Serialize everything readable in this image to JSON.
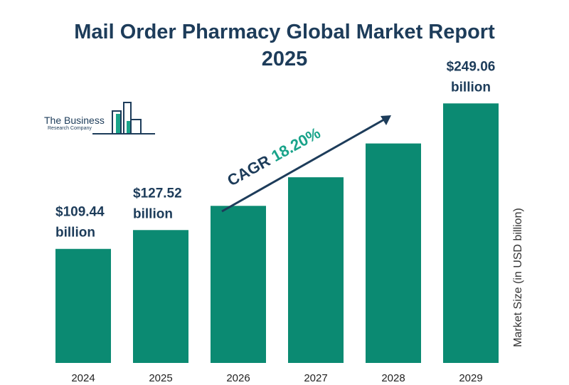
{
  "title_line1": "Mail Order Pharmacy Global Market Report",
  "title_line2": "2025",
  "logo": {
    "line1": "The Business",
    "line2": "Research Company"
  },
  "colors": {
    "bar": "#0b8a72",
    "title": "#1d3c5a",
    "cagr_value": "#19a38a",
    "label": "#1d3c5a"
  },
  "chart_data": {
    "type": "bar",
    "categories": [
      "2024",
      "2025",
      "2026",
      "2027",
      "2028",
      "2029"
    ],
    "values": [
      109.44,
      127.52,
      150.74,
      178.18,
      210.62,
      249.06
    ],
    "data_labels": [
      {
        "value": "$109.44",
        "unit": "billion"
      },
      {
        "value": "$127.52",
        "unit": "billion"
      },
      null,
      null,
      null,
      {
        "value": "$249.06",
        "unit": "billion"
      }
    ],
    "title": "Mail Order Pharmacy Global Market Report 2025",
    "xlabel": "",
    "ylabel": "Market Size (in USD billion)",
    "ylim": [
      0,
      280
    ],
    "grid": false,
    "annotation": {
      "label": "CAGR",
      "value": "18.20%"
    }
  }
}
